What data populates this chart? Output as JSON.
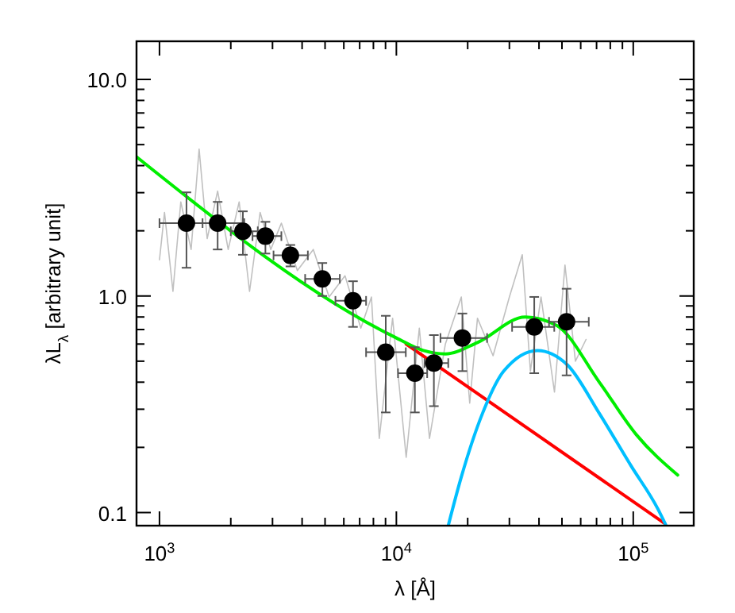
{
  "chart_data": {
    "type": "scatter",
    "xlabel": "λ [Å]",
    "ylabel": "λL$_{λ}$  [arbitrary unit]",
    "log": "xy",
    "grid": false,
    "xlim": [
      800,
      180000
    ],
    "ylim": [
      0.087,
      15
    ],
    "xticks": [
      {
        "value": 1000,
        "label": "10$^{3}$"
      },
      {
        "value": 2000,
        "label": null
      },
      {
        "value": 3000,
        "label": null
      },
      {
        "value": 4000,
        "label": null
      },
      {
        "value": 5000,
        "label": null
      },
      {
        "value": 6000,
        "label": null
      },
      {
        "value": 7000,
        "label": null
      },
      {
        "value": 8000,
        "label": null
      },
      {
        "value": 9000,
        "label": null
      },
      {
        "value": 10000,
        "label": "10$^{4}$"
      },
      {
        "value": 20000,
        "label": null
      },
      {
        "value": 30000,
        "label": null
      },
      {
        "value": 40000,
        "label": null
      },
      {
        "value": 50000,
        "label": null
      },
      {
        "value": 60000,
        "label": null
      },
      {
        "value": 70000,
        "label": null
      },
      {
        "value": 80000,
        "label": null
      },
      {
        "value": 90000,
        "label": null
      },
      {
        "value": 100000,
        "label": "10$^{5}$"
      }
    ],
    "yticks": [
      {
        "value": 0.1,
        "label": "0.1"
      },
      {
        "value": 0.2,
        "label": null
      },
      {
        "value": 0.3,
        "label": null
      },
      {
        "value": 0.4,
        "label": null
      },
      {
        "value": 0.5,
        "label": null
      },
      {
        "value": 0.6,
        "label": null
      },
      {
        "value": 0.7,
        "label": null
      },
      {
        "value": 0.8,
        "label": null
      },
      {
        "value": 0.9,
        "label": null
      },
      {
        "value": 1,
        "label": "1.0"
      },
      {
        "value": 2,
        "label": null
      },
      {
        "value": 3,
        "label": null
      },
      {
        "value": 4,
        "label": null
      },
      {
        "value": 5,
        "label": null
      },
      {
        "value": 6,
        "label": null
      },
      {
        "value": 7,
        "label": null
      },
      {
        "value": 8,
        "label": null
      },
      {
        "value": 9,
        "label": null
      },
      {
        "value": 10,
        "label": "10.0"
      }
    ],
    "series": [
      {
        "type": "line",
        "color": "#c0c0c0",
        "x": [
          1000,
          1050,
          1140,
          1230,
          1360,
          1470,
          1590,
          1760,
          1950,
          2170,
          2400,
          2660,
          2950,
          3270,
          3820,
          4460,
          5200,
          6070,
          7080,
          7850,
          8470,
          9640,
          11000,
          12500,
          13800,
          16100,
          18800,
          20400,
          22000,
          25600,
          30000,
          34000,
          36800,
          40800,
          46500,
          51500,
          57000,
          63200
        ],
        "values": [
          1.47,
          2.43,
          1.05,
          2.72,
          1.64,
          4.77,
          1.84,
          3.05,
          1.64,
          2.72,
          1.05,
          2.43,
          1.64,
          2.17,
          1.31,
          1.64,
          0.99,
          1.24,
          0.71,
          0.99,
          0.22,
          0.79,
          0.18,
          0.71,
          0.22,
          0.6,
          0.99,
          0.32,
          0.79,
          0.53,
          0.99,
          1.55,
          0.45,
          0.99,
          0.36,
          1.39,
          0.5,
          0.63
        ]
      },
      {
        "type": "line",
        "color": "#ff0000",
        "x": [
          11000,
          136000
        ],
        "values": [
          0.6,
          0.089
        ]
      },
      {
        "type": "line",
        "color": "#00bfff",
        "x": [
          16600,
          18800,
          23100,
          28400,
          39400,
          52800,
          71900,
          98000,
          127000,
          137000
        ],
        "values": [
          0.088,
          0.146,
          0.287,
          0.45,
          0.56,
          0.48,
          0.287,
          0.164,
          0.104,
          0.088
        ]
      },
      {
        "type": "line",
        "color": "#00ee00",
        "x": [
          800,
          10000,
          13000,
          16100,
          22000,
          35000,
          47600,
          71900,
          103000,
          154000
        ],
        "values": [
          4.39,
          0.64,
          0.56,
          0.54,
          0.61,
          0.8,
          0.73,
          0.4,
          0.229,
          0.149
        ]
      },
      {
        "color": "#000000",
        "marker": "circle",
        "x": [
          1300,
          1760,
          2250,
          2800,
          3570,
          4870,
          6560,
          9020,
          11970,
          14400,
          19000,
          38200,
          52300
        ],
        "values": [
          2.17,
          2.17,
          1.99,
          1.89,
          1.54,
          1.2,
          0.95,
          0.55,
          0.44,
          0.49,
          0.64,
          0.72,
          0.76
        ],
        "errors": [
          [
            1.35,
            3.01
          ],
          [
            1.64,
            2.72
          ],
          [
            1.55,
            2.46
          ],
          [
            1.57,
            2.2
          ],
          [
            1.37,
            1.72
          ],
          [
            1.0,
            1.42
          ],
          [
            0.72,
            1.17
          ],
          [
            0.29,
            0.81
          ],
          [
            0.29,
            0.58
          ],
          [
            0.31,
            0.66
          ],
          [
            0.45,
            0.83
          ],
          [
            0.44,
            0.99
          ],
          [
            0.43,
            1.08
          ]
        ],
        "xerrors": [
          [
            1000,
            1520
          ],
          [
            1360,
            2280
          ],
          [
            2000,
            2600
          ],
          [
            2470,
            3270
          ],
          [
            3030,
            4230
          ],
          [
            4120,
            5770
          ],
          [
            5530,
            7450
          ],
          [
            7450,
            10960
          ],
          [
            10160,
            13490
          ],
          [
            13150,
            16560
          ],
          [
            15350,
            24150
          ],
          [
            30800,
            46400
          ],
          [
            44100,
            64900
          ]
        ]
      }
    ]
  }
}
